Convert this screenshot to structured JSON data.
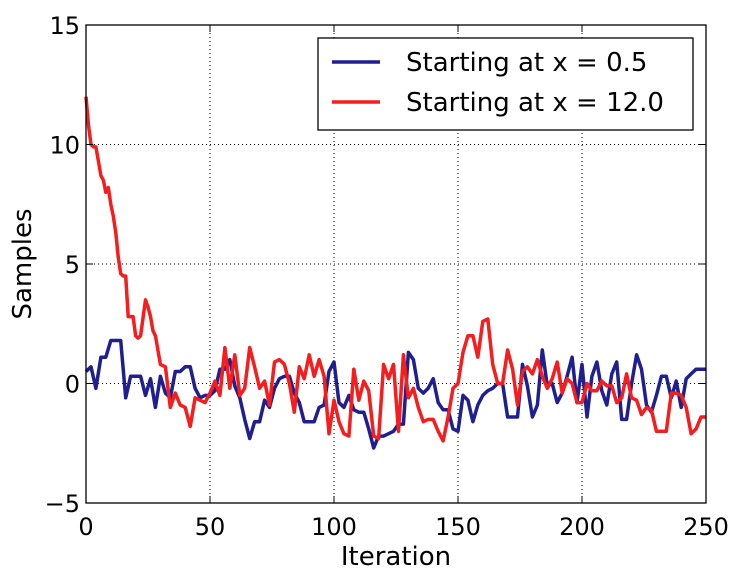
{
  "chart_data": {
    "type": "line",
    "xlabel": "Iteration",
    "ylabel": "Samples",
    "xlim": [
      0,
      250
    ],
    "ylim": [
      -5,
      15
    ],
    "x_ticks": [
      0,
      50,
      100,
      150,
      200,
      250
    ],
    "y_ticks": [
      -5,
      0,
      5,
      10,
      15
    ],
    "x_tick_labels": [
      "0",
      "50",
      "100",
      "150",
      "200",
      "250"
    ],
    "y_tick_labels": [
      "−5",
      "0",
      "5",
      "10",
      "15"
    ],
    "grid": true,
    "legend_position": "top-right",
    "series": [
      {
        "name": "Starting at x = 0.5",
        "color": "#1f1f8f",
        "x": [
          0,
          2,
          4,
          6,
          8,
          10,
          12,
          14,
          16,
          18,
          20,
          22,
          24,
          26,
          28,
          30,
          32,
          34,
          36,
          38,
          40,
          42,
          44,
          46,
          48,
          50,
          52,
          54,
          56,
          58,
          60,
          62,
          64,
          66,
          68,
          70,
          72,
          74,
          76,
          78,
          80,
          82,
          84,
          86,
          88,
          90,
          92,
          94,
          96,
          98,
          100,
          102,
          104,
          106,
          108,
          110,
          112,
          114,
          116,
          118,
          120,
          122,
          124,
          126,
          128,
          130,
          132,
          134,
          136,
          138,
          140,
          142,
          144,
          146,
          148,
          150,
          152,
          154,
          156,
          158,
          160,
          162,
          164,
          166,
          168,
          170,
          172,
          174,
          176,
          178,
          180,
          182,
          184,
          186,
          188,
          190,
          192,
          194,
          196,
          198,
          200,
          202,
          204,
          206,
          208,
          210,
          212,
          214,
          216,
          218,
          220,
          222,
          224,
          226,
          228,
          230,
          232,
          234,
          236,
          238,
          240,
          242,
          244,
          246,
          248,
          250
        ],
        "y": [
          0.5,
          0.7,
          -0.2,
          1.1,
          1.1,
          1.8,
          1.8,
          1.8,
          -0.6,
          0.3,
          0.3,
          0.3,
          -0.5,
          0.2,
          -1.0,
          0.3,
          -0.4,
          -0.6,
          0.5,
          0.5,
          0.7,
          0.7,
          -0.2,
          -0.6,
          -0.5,
          -0.5,
          -0.3,
          0.6,
          0.6,
          1.0,
          -0.1,
          -0.6,
          -1.5,
          -2.3,
          -1.6,
          -1.6,
          -0.7,
          -1.0,
          -0.2,
          0.2,
          0.3,
          0.3,
          -0.4,
          -0.8,
          -1.6,
          -1.6,
          -1.6,
          -1.0,
          -0.9,
          0.5,
          0.9,
          -0.8,
          -1.0,
          -0.5,
          -1.1,
          -1.2,
          -1.2,
          -1.9,
          -2.7,
          -2.2,
          -2.2,
          -2.1,
          -2.0,
          -1.7,
          -1.7,
          1.3,
          1.0,
          -0.2,
          -0.4,
          -0.2,
          0.2,
          -0.8,
          -1.1,
          -1.1,
          -1.9,
          -2.0,
          -0.5,
          -0.7,
          -1.6,
          -0.9,
          -0.5,
          -0.3,
          -0.2,
          0.0,
          0.0,
          -1.4,
          -1.4,
          -1.4,
          0.8,
          -0.1,
          -1.4,
          -0.9,
          1.4,
          -0.1,
          0.0,
          -0.8,
          -0.4,
          0.3,
          1.1,
          -0.8,
          0.8,
          -1.4,
          0.3,
          0.9,
          -0.3,
          -0.9,
          0.4,
          0.9,
          -1.5,
          -1.5,
          0.0,
          1.2,
          0.6,
          -0.9,
          -1.2,
          -0.5,
          0.3,
          0.3,
          -0.6,
          0.1,
          -1.0,
          0.2,
          0.4,
          0.6,
          0.6,
          0.6
        ]
      },
      {
        "name": "Starting at x = 12.0",
        "color": "#f51d1d",
        "x": [
          0,
          1,
          2,
          3,
          4,
          6,
          7,
          8,
          9,
          10,
          11,
          12,
          13,
          14,
          15,
          16,
          17,
          18,
          19,
          20,
          21,
          22,
          24,
          25,
          26,
          27,
          28,
          30,
          32,
          34,
          36,
          38,
          40,
          42,
          44,
          46,
          48,
          50,
          52,
          54,
          56,
          58,
          60,
          62,
          64,
          66,
          68,
          70,
          72,
          74,
          76,
          78,
          80,
          82,
          84,
          86,
          88,
          90,
          92,
          94,
          96,
          98,
          100,
          102,
          104,
          106,
          108,
          110,
          112,
          114,
          116,
          118,
          120,
          122,
          124,
          126,
          128,
          130,
          132,
          134,
          136,
          138,
          140,
          142,
          144,
          146,
          148,
          150,
          152,
          154,
          156,
          158,
          160,
          162,
          164,
          166,
          168,
          170,
          172,
          174,
          176,
          178,
          180,
          182,
          184,
          186,
          188,
          190,
          192,
          194,
          196,
          198,
          200,
          202,
          204,
          206,
          208,
          210,
          212,
          214,
          216,
          218,
          220,
          222,
          224,
          226,
          228,
          230,
          232,
          234,
          236,
          238,
          240,
          242,
          244,
          246,
          248,
          250
        ],
        "y": [
          12.0,
          10.8,
          10.0,
          9.9,
          9.9,
          8.7,
          8.5,
          8.0,
          8.2,
          7.5,
          7.0,
          6.3,
          5.3,
          4.6,
          4.5,
          4.5,
          2.8,
          2.8,
          2.8,
          2.0,
          1.9,
          2.0,
          3.5,
          3.2,
          2.8,
          2.2,
          2.0,
          0.8,
          0.7,
          -1.0,
          -0.4,
          -0.9,
          -1.0,
          -1.8,
          -0.6,
          -0.7,
          -0.8,
          -0.4,
          0.1,
          -0.5,
          1.5,
          -0.2,
          1.2,
          -0.5,
          -0.2,
          1.5,
          0.7,
          -0.2,
          0.1,
          -0.9,
          0.9,
          1.0,
          0.8,
          0.0,
          -1.2,
          0.7,
          0.2,
          1.2,
          0.3,
          1.0,
          0.3,
          -2.1,
          -0.7,
          -1.6,
          -2.1,
          -2.2,
          0.6,
          -0.7,
          0.1,
          -0.3,
          -2.2,
          -2.3,
          0.8,
          0.2,
          0.8,
          -2.0,
          1.2,
          -0.6,
          -0.2,
          -1.0,
          -1.6,
          -1.5,
          -1.5,
          -2.0,
          -2.4,
          -1.4,
          -0.2,
          0.0,
          1.3,
          2.0,
          2.0,
          1.1,
          2.6,
          2.7,
          0.8,
          0.0,
          0.0,
          1.4,
          0.6,
          -0.9,
          0.5,
          0.7,
          0.4,
          1.0,
          0.3,
          -0.2,
          0.2,
          0.9,
          -0.4,
          0.2,
          0.0,
          -0.8,
          -0.8,
          0.0,
          -0.3,
          -0.3,
          0.1,
          -0.1,
          -0.1,
          -0.8,
          -0.6,
          0.4,
          -0.6,
          -0.7,
          -1.3,
          -1.0,
          -1.1,
          -2.0,
          -2.0,
          -2.0,
          -0.4,
          -0.4,
          -0.5,
          -1.0,
          -2.1,
          -1.9,
          -1.4,
          -1.4
        ]
      }
    ]
  }
}
